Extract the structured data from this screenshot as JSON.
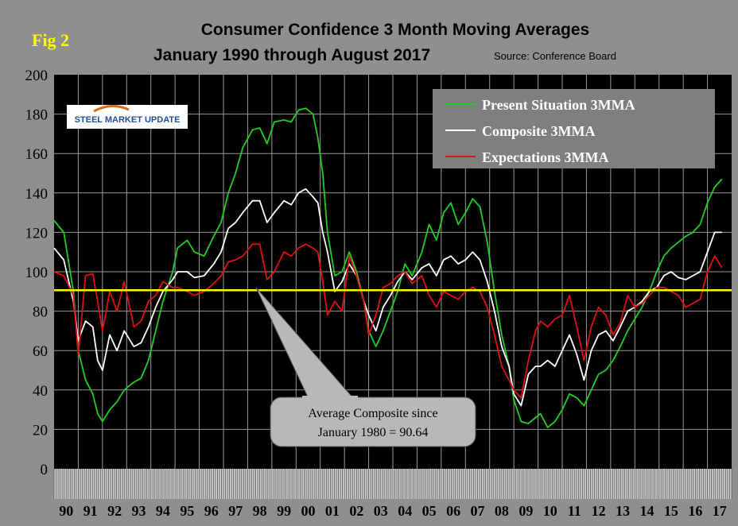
{
  "fig_label": "Fig 2",
  "title_line1": "Consumer Confidence 3 Month Moving Averages",
  "title_line2": "January 1990 through August 2017",
  "source": "Source: Conference Board",
  "logo_text": "STEEL MARKET UPDATE",
  "annotation": {
    "line1": "Average Composite since",
    "line2": "January 1980 = 90.64"
  },
  "colors": {
    "background": "#000000",
    "frame": "#8f8f8f",
    "present": "#22cc22",
    "composite": "#ffffff",
    "expectations": "#dd1111",
    "average_line": "#ffff00",
    "fig_label": "#ffff00"
  },
  "chart_data": {
    "type": "line",
    "x_labels": [
      "90",
      "91",
      "92",
      "93",
      "94",
      "95",
      "96",
      "97",
      "98",
      "99",
      "00",
      "01",
      "02",
      "03",
      "04",
      "05",
      "06",
      "07",
      "08",
      "09",
      "10",
      "11",
      "12",
      "13",
      "14",
      "15",
      "16",
      "17"
    ],
    "x_start_year": 1990,
    "ylim": [
      0,
      200
    ],
    "yticks": [
      0,
      20,
      40,
      60,
      80,
      100,
      120,
      140,
      160,
      180,
      200
    ],
    "grid": true,
    "legend_position": "top-right",
    "reference_line": {
      "value": 90.64,
      "label": "Average Composite since January 1980 = 90.64"
    },
    "series": [
      {
        "name": "Present Situation 3MMA",
        "color": "#22cc22",
        "points": [
          [
            1990.0,
            126
          ],
          [
            1990.4,
            120
          ],
          [
            1990.8,
            90
          ],
          [
            1991.0,
            60
          ],
          [
            1991.3,
            45
          ],
          [
            1991.6,
            38
          ],
          [
            1991.8,
            28
          ],
          [
            1992.0,
            24
          ],
          [
            1992.3,
            30
          ],
          [
            1992.6,
            34
          ],
          [
            1992.9,
            40
          ],
          [
            1993.3,
            44
          ],
          [
            1993.6,
            46
          ],
          [
            1993.9,
            55
          ],
          [
            1994.2,
            70
          ],
          [
            1994.5,
            85
          ],
          [
            1994.9,
            100
          ],
          [
            1995.1,
            112
          ],
          [
            1995.5,
            116
          ],
          [
            1995.8,
            110
          ],
          [
            1996.2,
            108
          ],
          [
            1996.6,
            118
          ],
          [
            1996.9,
            125
          ],
          [
            1997.2,
            140
          ],
          [
            1997.5,
            150
          ],
          [
            1997.8,
            163
          ],
          [
            1998.2,
            172
          ],
          [
            1998.5,
            173
          ],
          [
            1998.8,
            165
          ],
          [
            1999.1,
            176
          ],
          [
            1999.5,
            177
          ],
          [
            1999.8,
            176
          ],
          [
            2000.1,
            182
          ],
          [
            2000.4,
            183
          ],
          [
            2000.7,
            180
          ],
          [
            2000.9,
            168
          ],
          [
            2001.1,
            150
          ],
          [
            2001.3,
            120
          ],
          [
            2001.6,
            98
          ],
          [
            2001.9,
            100
          ],
          [
            2002.2,
            110
          ],
          [
            2002.5,
            100
          ],
          [
            2002.8,
            85
          ],
          [
            2003.0,
            70
          ],
          [
            2003.3,
            62
          ],
          [
            2003.6,
            70
          ],
          [
            2003.9,
            80
          ],
          [
            2004.2,
            90
          ],
          [
            2004.5,
            104
          ],
          [
            2004.8,
            98
          ],
          [
            2005.2,
            110
          ],
          [
            2005.5,
            124
          ],
          [
            2005.8,
            116
          ],
          [
            2006.1,
            130
          ],
          [
            2006.4,
            135
          ],
          [
            2006.7,
            124
          ],
          [
            2007.0,
            130
          ],
          [
            2007.3,
            137
          ],
          [
            2007.6,
            133
          ],
          [
            2007.9,
            115
          ],
          [
            2008.2,
            90
          ],
          [
            2008.5,
            68
          ],
          [
            2008.8,
            52
          ],
          [
            2009.0,
            35
          ],
          [
            2009.3,
            24
          ],
          [
            2009.6,
            23
          ],
          [
            2009.9,
            26
          ],
          [
            2010.1,
            28
          ],
          [
            2010.4,
            21
          ],
          [
            2010.7,
            24
          ],
          [
            2011.0,
            30
          ],
          [
            2011.3,
            38
          ],
          [
            2011.6,
            36
          ],
          [
            2011.9,
            32
          ],
          [
            2012.2,
            40
          ],
          [
            2012.5,
            48
          ],
          [
            2012.8,
            50
          ],
          [
            2013.1,
            55
          ],
          [
            2013.4,
            62
          ],
          [
            2013.7,
            70
          ],
          [
            2014.0,
            76
          ],
          [
            2014.3,
            82
          ],
          [
            2014.6,
            90
          ],
          [
            2014.9,
            100
          ],
          [
            2015.2,
            108
          ],
          [
            2015.5,
            112
          ],
          [
            2015.8,
            115
          ],
          [
            2016.1,
            118
          ],
          [
            2016.4,
            120
          ],
          [
            2016.7,
            124
          ],
          [
            2017.0,
            135
          ],
          [
            2017.3,
            143
          ],
          [
            2017.6,
            147
          ]
        ]
      },
      {
        "name": "Composite 3MMA",
        "color": "#ffffff",
        "points": [
          [
            1990.0,
            112
          ],
          [
            1990.4,
            106
          ],
          [
            1990.8,
            85
          ],
          [
            1991.0,
            65
          ],
          [
            1991.3,
            75
          ],
          [
            1991.6,
            72
          ],
          [
            1991.8,
            55
          ],
          [
            1992.0,
            50
          ],
          [
            1992.3,
            68
          ],
          [
            1992.6,
            60
          ],
          [
            1992.9,
            70
          ],
          [
            1993.3,
            62
          ],
          [
            1993.6,
            64
          ],
          [
            1993.9,
            72
          ],
          [
            1994.2,
            82
          ],
          [
            1994.5,
            90
          ],
          [
            1994.9,
            96
          ],
          [
            1995.1,
            100
          ],
          [
            1995.5,
            100
          ],
          [
            1995.8,
            97
          ],
          [
            1996.2,
            98
          ],
          [
            1996.6,
            104
          ],
          [
            1996.9,
            110
          ],
          [
            1997.2,
            122
          ],
          [
            1997.5,
            125
          ],
          [
            1997.8,
            130
          ],
          [
            1998.2,
            136
          ],
          [
            1998.5,
            136
          ],
          [
            1998.8,
            125
          ],
          [
            1999.1,
            130
          ],
          [
            1999.5,
            136
          ],
          [
            1999.8,
            134
          ],
          [
            2000.1,
            140
          ],
          [
            2000.4,
            142
          ],
          [
            2000.7,
            138
          ],
          [
            2000.9,
            135
          ],
          [
            2001.1,
            120
          ],
          [
            2001.3,
            110
          ],
          [
            2001.6,
            90
          ],
          [
            2001.9,
            95
          ],
          [
            2002.2,
            104
          ],
          [
            2002.5,
            98
          ],
          [
            2002.8,
            85
          ],
          [
            2003.0,
            78
          ],
          [
            2003.3,
            70
          ],
          [
            2003.6,
            82
          ],
          [
            2003.9,
            88
          ],
          [
            2004.2,
            95
          ],
          [
            2004.5,
            100
          ],
          [
            2004.8,
            96
          ],
          [
            2005.2,
            102
          ],
          [
            2005.5,
            104
          ],
          [
            2005.8,
            98
          ],
          [
            2006.1,
            106
          ],
          [
            2006.4,
            108
          ],
          [
            2006.7,
            104
          ],
          [
            2007.0,
            106
          ],
          [
            2007.3,
            110
          ],
          [
            2007.6,
            106
          ],
          [
            2007.9,
            95
          ],
          [
            2008.2,
            80
          ],
          [
            2008.5,
            62
          ],
          [
            2008.8,
            52
          ],
          [
            2009.0,
            38
          ],
          [
            2009.3,
            32
          ],
          [
            2009.6,
            48
          ],
          [
            2009.9,
            52
          ],
          [
            2010.1,
            52
          ],
          [
            2010.4,
            55
          ],
          [
            2010.7,
            52
          ],
          [
            2011.0,
            60
          ],
          [
            2011.3,
            68
          ],
          [
            2011.6,
            58
          ],
          [
            2011.9,
            45
          ],
          [
            2012.2,
            60
          ],
          [
            2012.5,
            68
          ],
          [
            2012.8,
            70
          ],
          [
            2013.1,
            65
          ],
          [
            2013.4,
            72
          ],
          [
            2013.7,
            80
          ],
          [
            2014.0,
            82
          ],
          [
            2014.3,
            85
          ],
          [
            2014.6,
            90
          ],
          [
            2014.9,
            92
          ],
          [
            2015.2,
            98
          ],
          [
            2015.5,
            100
          ],
          [
            2015.8,
            97
          ],
          [
            2016.1,
            96
          ],
          [
            2016.4,
            98
          ],
          [
            2016.7,
            100
          ],
          [
            2017.0,
            110
          ],
          [
            2017.3,
            120
          ],
          [
            2017.6,
            120
          ]
        ]
      },
      {
        "name": "Expectations 3MMA",
        "color": "#dd1111",
        "points": [
          [
            1990.0,
            100
          ],
          [
            1990.4,
            98
          ],
          [
            1990.8,
            88
          ],
          [
            1991.0,
            58
          ],
          [
            1991.3,
            98
          ],
          [
            1991.6,
            99
          ],
          [
            1991.8,
            85
          ],
          [
            1992.0,
            70
          ],
          [
            1992.3,
            90
          ],
          [
            1992.6,
            80
          ],
          [
            1992.9,
            95
          ],
          [
            1993.3,
            72
          ],
          [
            1993.6,
            75
          ],
          [
            1993.9,
            85
          ],
          [
            1994.2,
            88
          ],
          [
            1994.5,
            95
          ],
          [
            1994.9,
            92
          ],
          [
            1995.1,
            92
          ],
          [
            1995.5,
            90
          ],
          [
            1995.8,
            88
          ],
          [
            1996.2,
            90
          ],
          [
            1996.6,
            94
          ],
          [
            1996.9,
            98
          ],
          [
            1997.2,
            105
          ],
          [
            1997.5,
            106
          ],
          [
            1997.8,
            108
          ],
          [
            1998.2,
            114
          ],
          [
            1998.5,
            114
          ],
          [
            1998.8,
            96
          ],
          [
            1999.1,
            100
          ],
          [
            1999.5,
            110
          ],
          [
            1999.8,
            108
          ],
          [
            2000.1,
            112
          ],
          [
            2000.4,
            114
          ],
          [
            2000.7,
            112
          ],
          [
            2000.9,
            110
          ],
          [
            2001.1,
            95
          ],
          [
            2001.3,
            78
          ],
          [
            2001.6,
            85
          ],
          [
            2001.9,
            80
          ],
          [
            2002.2,
            108
          ],
          [
            2002.5,
            98
          ],
          [
            2002.8,
            85
          ],
          [
            2003.0,
            68
          ],
          [
            2003.3,
            78
          ],
          [
            2003.6,
            92
          ],
          [
            2003.9,
            94
          ],
          [
            2004.2,
            98
          ],
          [
            2004.5,
            100
          ],
          [
            2004.8,
            94
          ],
          [
            2005.2,
            98
          ],
          [
            2005.5,
            88
          ],
          [
            2005.8,
            82
          ],
          [
            2006.1,
            90
          ],
          [
            2006.4,
            88
          ],
          [
            2006.7,
            86
          ],
          [
            2007.0,
            90
          ],
          [
            2007.3,
            92
          ],
          [
            2007.6,
            90
          ],
          [
            2007.9,
            82
          ],
          [
            2008.2,
            68
          ],
          [
            2008.5,
            52
          ],
          [
            2008.8,
            45
          ],
          [
            2009.0,
            40
          ],
          [
            2009.3,
            36
          ],
          [
            2009.6,
            55
          ],
          [
            2009.9,
            70
          ],
          [
            2010.1,
            75
          ],
          [
            2010.4,
            72
          ],
          [
            2010.7,
            76
          ],
          [
            2011.0,
            78
          ],
          [
            2011.3,
            88
          ],
          [
            2011.6,
            72
          ],
          [
            2011.9,
            55
          ],
          [
            2012.2,
            72
          ],
          [
            2012.5,
            82
          ],
          [
            2012.8,
            78
          ],
          [
            2013.1,
            68
          ],
          [
            2013.4,
            74
          ],
          [
            2013.7,
            88
          ],
          [
            2014.0,
            82
          ],
          [
            2014.3,
            84
          ],
          [
            2014.6,
            88
          ],
          [
            2014.9,
            92
          ],
          [
            2015.2,
            92
          ],
          [
            2015.5,
            90
          ],
          [
            2015.8,
            88
          ],
          [
            2016.1,
            82
          ],
          [
            2016.4,
            84
          ],
          [
            2016.7,
            86
          ],
          [
            2017.0,
            100
          ],
          [
            2017.3,
            108
          ],
          [
            2017.6,
            102
          ]
        ]
      }
    ]
  }
}
